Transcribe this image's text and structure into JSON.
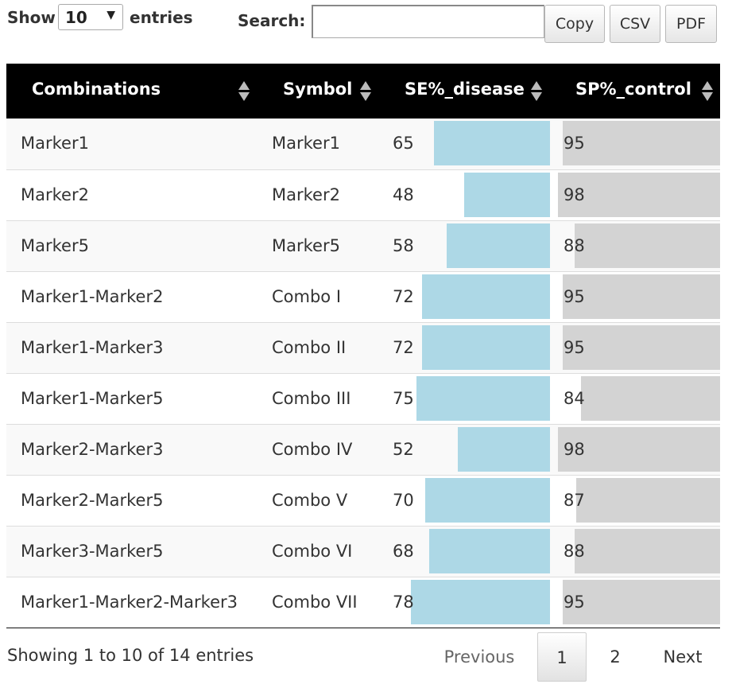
{
  "length_control": {
    "show_label": "Show",
    "selected": "10",
    "entries_label": "entries"
  },
  "search": {
    "label": "Search:",
    "value": "",
    "placeholder": ""
  },
  "buttons": {
    "copy": "Copy",
    "csv": "CSV",
    "pdf": "PDF"
  },
  "table": {
    "headers": [
      "Combinations",
      "Symbol",
      "SE%_disease",
      "SP%_control"
    ],
    "se_bar_color": "#add8e6",
    "sp_bar_color": "#d3d3d3",
    "header_bg": "#000000",
    "rows": [
      {
        "combination": "Marker1",
        "symbol": "Marker1",
        "se": 65,
        "sp": 95
      },
      {
        "combination": "Marker2",
        "symbol": "Marker2",
        "se": 48,
        "sp": 98
      },
      {
        "combination": "Marker5",
        "symbol": "Marker5",
        "se": 58,
        "sp": 88
      },
      {
        "combination": "Marker1-Marker2",
        "symbol": "Combo I",
        "se": 72,
        "sp": 95
      },
      {
        "combination": "Marker1-Marker3",
        "symbol": "Combo II",
        "se": 72,
        "sp": 95
      },
      {
        "combination": "Marker1-Marker5",
        "symbol": "Combo III",
        "se": 75,
        "sp": 84
      },
      {
        "combination": "Marker2-Marker3",
        "symbol": "Combo IV",
        "se": 52,
        "sp": 98
      },
      {
        "combination": "Marker2-Marker5",
        "symbol": "Combo V",
        "se": 70,
        "sp": 87
      },
      {
        "combination": "Marker3-Marker5",
        "symbol": "Combo VI",
        "se": 68,
        "sp": 88
      },
      {
        "combination": "Marker1-Marker2-Marker3",
        "symbol": "Combo VII",
        "se": 78,
        "sp": 95
      }
    ]
  },
  "footer": {
    "info": "Showing 1 to 10 of 14 entries",
    "previous": "Previous",
    "pages": [
      "1",
      "2"
    ],
    "current_page": "1",
    "next": "Next"
  }
}
